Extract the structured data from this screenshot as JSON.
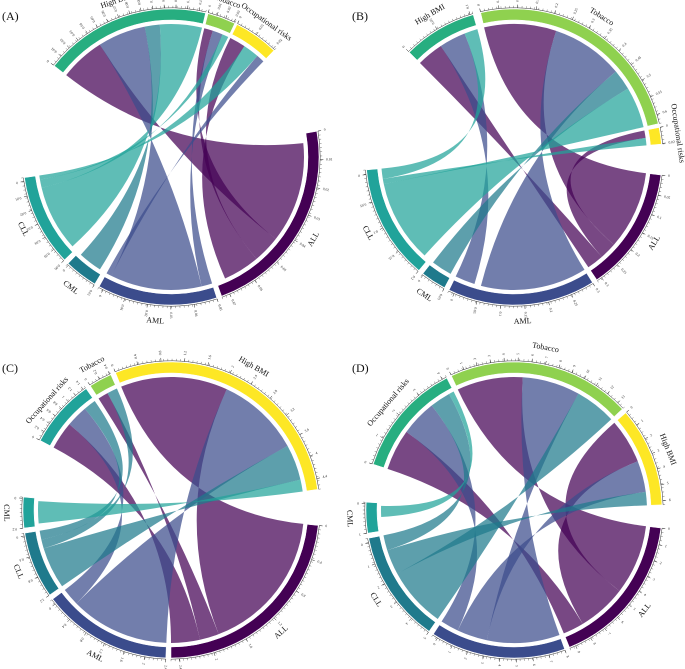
{
  "colors": {
    "ALL": "#440154",
    "AML": "#3b4c8c",
    "CML": "#1f7a8c",
    "CLL": "#21a39a",
    "High BMI": "#27ae80",
    "Tobacco": "#8fd14f",
    "Occupational risks": "#fde725"
  },
  "panels": [
    {
      "label": "(A)",
      "sectors": [
        {
          "name": "High BMI",
          "value": 0.155,
          "color_key": "High BMI",
          "ticks": [
            "0",
            "0.01",
            "0.02",
            "0.03",
            "0.04",
            "0.05",
            "0.06",
            "0.07",
            "0.08",
            "0.09",
            "0.1",
            "0.11",
            "0.12",
            "0.13",
            "0.14"
          ]
        },
        {
          "name": "Tobacco",
          "value": 0.03,
          "color_key": "Tobacco",
          "ticks": [
            "0",
            "0.01",
            "0.02",
            "0.03"
          ]
        },
        {
          "name": "Occupational risks",
          "value": 0.025,
          "color_key": "Occupational risks",
          "ticks": [
            "0",
            "0.01",
            "0.02"
          ]
        },
        {
          "name": "ALL",
          "value": 0.075,
          "color_key": "ALL",
          "ticks": [
            "0",
            "0.01",
            "0.02",
            "0.03",
            "0.04",
            "0.05",
            "0.06",
            "0.07"
          ]
        },
        {
          "name": "AML",
          "value": 0.055,
          "color_key": "AML",
          "ticks": [
            "0.05",
            "0.04",
            "0.03",
            "0.02",
            "0.01",
            "0"
          ]
        },
        {
          "name": "CML",
          "value": 0.012,
          "color_key": "CML",
          "ticks": [
            "0.01",
            "0"
          ]
        },
        {
          "name": "CLL",
          "value": 0.07,
          "color_key": "CLL",
          "ticks": [
            "0.06",
            "0.05",
            "0.04",
            "0.03",
            "0.02",
            "0.01",
            "0"
          ]
        }
      ]
    },
    {
      "label": "(B)",
      "sectors": [
        {
          "name": "High BMI",
          "value": 0.14,
          "color_key": "High BMI",
          "ticks": [
            "0",
            "0.05",
            "0.1"
          ]
        },
        {
          "name": "Tobacco",
          "value": 0.62,
          "color_key": "Tobacco",
          "ticks": [
            "0",
            "0.05",
            "0.1",
            "0.15",
            "0.2",
            "0.25",
            "0.3",
            "0.35",
            "0.4",
            "0.45",
            "0.5",
            "0.55",
            "0.6"
          ]
        },
        {
          "name": "Occupational risks",
          "value": 0.025,
          "color_key": "Occupational risks",
          "ticks": [
            "0",
            "0.02"
          ]
        },
        {
          "name": "ALL",
          "value": 0.3,
          "color_key": "ALL",
          "ticks": [
            "0",
            "0.05",
            "0.1",
            "0.15",
            "0.2",
            "0.25",
            "0.3"
          ]
        },
        {
          "name": "AML",
          "value": 0.3,
          "color_key": "AML",
          "ticks": [
            "0.3",
            "0.25",
            "0.2",
            "0.15",
            "0.1",
            "0.05",
            "0"
          ]
        },
        {
          "name": "CML",
          "value": 0.05,
          "color_key": "CML",
          "ticks": [
            "0.05",
            "0"
          ]
        },
        {
          "name": "CLL",
          "value": 0.22,
          "color_key": "CLL",
          "ticks": [
            "0.2",
            "0.15",
            "0.1",
            "0.05",
            "0"
          ]
        }
      ]
    },
    {
      "label": "(C)",
      "sectors": [
        {
          "name": "Occupational risks",
          "value": 1.4,
          "color_key": "CLL",
          "ticks": [
            "0",
            "0.2",
            "0.4",
            "0.6",
            "0.8",
            "1",
            "1.2",
            "1.4"
          ]
        },
        {
          "name": "Tobacco",
          "value": 0.5,
          "color_key": "Tobacco",
          "ticks": [
            "0",
            "0.2",
            "0.4"
          ]
        },
        {
          "name": "High BMI",
          "value": 4.6,
          "color_key": "Occupational risks",
          "ticks": [
            "0",
            "0.4",
            "0.8",
            "1.2",
            "1.6",
            "2",
            "2.4",
            "2.8",
            "3.2",
            "3.6",
            "4",
            "4.4"
          ]
        },
        {
          "name": "ALL",
          "value": 2.4,
          "color_key": "ALL",
          "ticks": [
            "0",
            "0.4",
            "0.8",
            "1.2",
            "1.6",
            "2",
            "2.4"
          ]
        },
        {
          "name": "AML",
          "value": 2.4,
          "color_key": "AML",
          "ticks": [
            "2.4",
            "2",
            "1.6",
            "1.2",
            "0.8",
            "0.4",
            "0"
          ]
        },
        {
          "name": "CLL",
          "value": 1.4,
          "color_key": "CML",
          "ticks": [
            "1.2",
            "0.8",
            "0.4",
            "0"
          ]
        },
        {
          "name": "CML",
          "value": 0.3,
          "color_key": "CLL",
          "ticks": [
            "0.2",
            "0"
          ]
        }
      ]
    },
    {
      "label": "(D)",
      "sectors": [
        {
          "name": "Occupational risks",
          "value": 4.5,
          "color_key": "High BMI",
          "ticks": [
            "0",
            "1",
            "2",
            "3",
            "4"
          ]
        },
        {
          "name": "Tobacco",
          "value": 13,
          "color_key": "Tobacco",
          "ticks": [
            "0",
            "1",
            "2",
            "3",
            "4",
            "5",
            "6",
            "7",
            "8",
            "9",
            "10",
            "11",
            "12",
            "13"
          ]
        },
        {
          "name": "High BMI",
          "value": 6.5,
          "color_key": "Occupational risks",
          "ticks": [
            "0",
            "1",
            "2",
            "3",
            "4",
            "5",
            "6"
          ]
        },
        {
          "name": "ALL",
          "value": 9,
          "color_key": "ALL",
          "ticks": [
            "0",
            "1",
            "2",
            "3",
            "4",
            "5",
            "6",
            "7",
            "8",
            "9"
          ]
        },
        {
          "name": "AML",
          "value": 8,
          "color_key": "AML",
          "ticks": [
            "8",
            "7",
            "6",
            "5",
            "4",
            "3",
            "2",
            "1",
            "0"
          ]
        },
        {
          "name": "CLL",
          "value": 5.5,
          "color_key": "CML",
          "ticks": [
            "5",
            "4",
            "3",
            "2",
            "1",
            "0"
          ]
        },
        {
          "name": "CML",
          "value": 1,
          "color_key": "CLL",
          "ticks": [
            "1",
            "0"
          ]
        }
      ]
    }
  ]
}
